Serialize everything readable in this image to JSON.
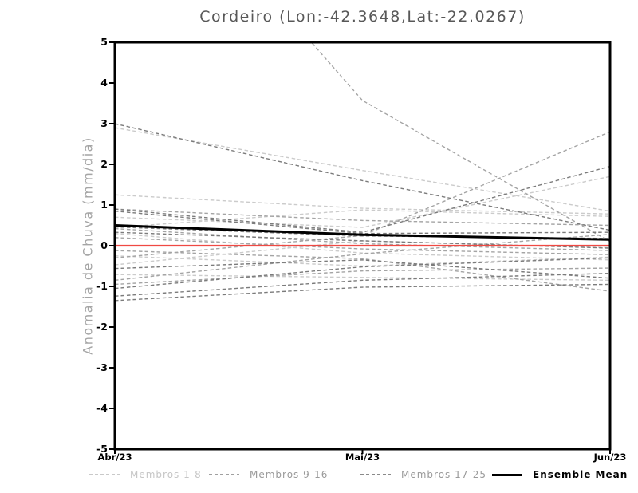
{
  "chart_data": {
    "type": "line",
    "title": "Cordeiro (Lon:-42.3648,Lat:-22.0267)",
    "ylabel": "Anomalia de Chuva (mm/dia)",
    "x_categories": [
      "Abr/23",
      "Mai/23",
      "Jun/23"
    ],
    "ylim": [
      -5,
      5
    ],
    "yticks": [
      5,
      4,
      3,
      2,
      1,
      0,
      -1,
      -2,
      -3,
      -4,
      -5
    ],
    "grid": false,
    "legend_position": "bottom",
    "frame_color": "#000000",
    "zero_line": {
      "value": 0,
      "color": "#f04943"
    },
    "mean": {
      "name": "Ensemble Mean",
      "color": "#000000",
      "values": [
        0.5,
        0.27,
        0.15
      ]
    },
    "groups": [
      {
        "name": "Membros 1-8",
        "color": "#cbcbcb",
        "series": [
          [
            2.9,
            1.85,
            0.85
          ],
          [
            1.25,
            0.92,
            0.78
          ],
          [
            0.7,
            0.45,
            1.7
          ],
          [
            0.45,
            0.88,
            0.72
          ],
          [
            0.3,
            -0.18,
            -0.35
          ],
          [
            -0.25,
            -0.5,
            -0.28
          ],
          [
            -0.47,
            0.12,
            -0.05
          ],
          [
            -0.71,
            -0.78,
            -0.85
          ]
        ]
      },
      {
        "name": "Membros 9-16",
        "color": "#a4a4a4",
        "series": [
          [
            10.5,
            3.57,
            0.1
          ],
          [
            -0.3,
            0.25,
            2.8
          ],
          [
            0.9,
            0.62,
            0.5
          ],
          [
            0.42,
            0.05,
            -0.12
          ],
          [
            0.2,
            -0.08,
            -0.22
          ],
          [
            -0.85,
            -0.2,
            0.28
          ],
          [
            -0.95,
            -0.62,
            -0.55
          ],
          [
            -0.12,
            -0.32,
            -1.12
          ]
        ]
      },
      {
        "name": "Membros 17-25",
        "color": "#7b7b7b",
        "series": [
          [
            3.0,
            1.6,
            0.38
          ],
          [
            0.9,
            0.33,
            1.95
          ],
          [
            0.85,
            0.3,
            0.33
          ],
          [
            0.46,
            0.24,
            0.18
          ],
          [
            0.33,
            0.12,
            -0.06
          ],
          [
            -0.56,
            -0.35,
            -0.8
          ],
          [
            -1.05,
            -0.52,
            -0.3
          ],
          [
            -1.24,
            -0.85,
            -0.68
          ],
          [
            -1.35,
            -1.02,
            -0.95
          ]
        ]
      }
    ]
  },
  "legend": {
    "items": [
      {
        "label": "Membros 1-8",
        "color": "#c9c9c9",
        "style": "dashed",
        "text_color": "#c6c6c6"
      },
      {
        "label": "Membros 9-16",
        "color": "#a0a0a0",
        "style": "dashed",
        "text_color": "#9a9a9a"
      },
      {
        "label": "Membros 17-25",
        "color": "#8a8a8a",
        "style": "dashed",
        "text_color": "#9a9a9a"
      },
      {
        "label": "Ensemble Mean",
        "color": "#000000",
        "style": "solid",
        "text_color": "#000000"
      }
    ]
  }
}
